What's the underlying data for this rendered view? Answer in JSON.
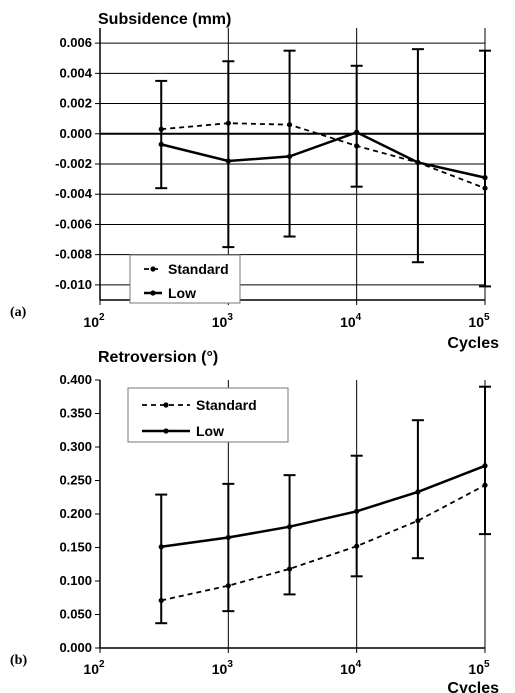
{
  "chart_data": [
    {
      "type": "line",
      "panel_label": "(a)",
      "title": "Subsidence (mm)",
      "xlabel": "Cycles",
      "xscale": "log",
      "xlim": [
        100,
        100000
      ],
      "x_ticks": [
        "10",
        "10",
        "10",
        "10"
      ],
      "x_tick_exponents": [
        "2",
        "3",
        "4",
        "5"
      ],
      "ylim": [
        -0.011,
        0.007
      ],
      "y_tick_labels": [
        "0.006",
        "0.004",
        "0.002",
        "0.000",
        "-0.002",
        "-0.004",
        "-0.006",
        "-0.008",
        "-0.010"
      ],
      "y_tick_values": [
        0.006,
        0.004,
        0.002,
        0.0,
        -0.002,
        -0.004,
        -0.006,
        -0.008,
        -0.01
      ],
      "grid": true,
      "legend_position": "bottom-left",
      "x": [
        300,
        1000,
        3000,
        10000,
        30000,
        100000
      ],
      "series": [
        {
          "name": "Standard",
          "style": "dashed",
          "values": [
            0.0003,
            0.0007,
            0.0006,
            -0.0008,
            -0.0019,
            -0.0036
          ]
        },
        {
          "name": "Low",
          "style": "solid",
          "values": [
            -0.0007,
            -0.0018,
            -0.0015,
            0.0001,
            -0.0019,
            -0.0029
          ]
        }
      ],
      "error_bars": {
        "upper": [
          0.0035,
          0.0048,
          0.0055,
          0.0045,
          0.0056,
          0.0055
        ],
        "lower": [
          -0.0036,
          -0.0075,
          -0.0068,
          -0.0035,
          -0.0085,
          -0.0101
        ]
      }
    },
    {
      "type": "line",
      "panel_label": "(b)",
      "title": "Retroversion (°)",
      "xlabel": "Cycles",
      "xscale": "log",
      "xlim": [
        100,
        100000
      ],
      "x_ticks": [
        "10",
        "10",
        "10",
        "10"
      ],
      "x_tick_exponents": [
        "2",
        "3",
        "4",
        "5"
      ],
      "ylim": [
        0,
        0.4
      ],
      "y_tick_labels": [
        "0.400",
        "0.350",
        "0.300",
        "0.250",
        "0.200",
        "0.150",
        "0.100",
        "0.050",
        "0.000"
      ],
      "y_tick_values": [
        0.4,
        0.35,
        0.3,
        0.25,
        0.2,
        0.15,
        0.1,
        0.05,
        0.0
      ],
      "grid": false,
      "legend_position": "top-left",
      "x": [
        300,
        1000,
        3000,
        10000,
        30000,
        100000
      ],
      "series": [
        {
          "name": "Standard",
          "style": "dashed",
          "values": [
            0.071,
            0.093,
            0.118,
            0.152,
            0.19,
            0.243
          ]
        },
        {
          "name": "Low",
          "style": "solid",
          "values": [
            0.151,
            0.165,
            0.181,
            0.204,
            0.233,
            0.272
          ]
        }
      ],
      "error_bars": {
        "upper": [
          0.229,
          0.245,
          0.258,
          0.287,
          0.34,
          0.39
        ],
        "lower": [
          0.037,
          0.055,
          0.08,
          0.107,
          0.134,
          0.17
        ]
      }
    }
  ]
}
